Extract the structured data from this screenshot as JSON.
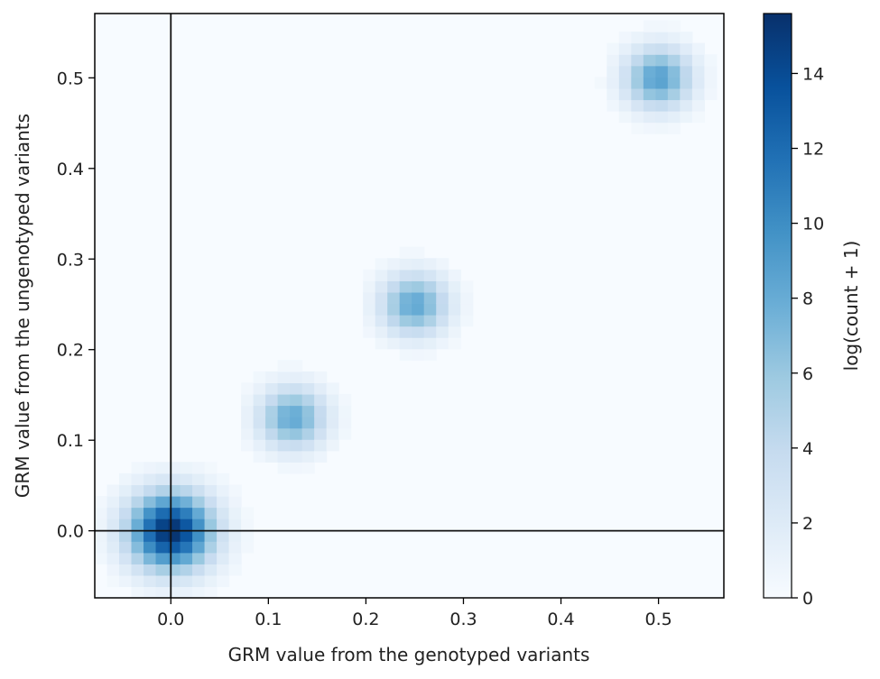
{
  "chart_data": {
    "type": "heatmap",
    "title": "",
    "xlabel": "GRM value from the genotyped variants",
    "ylabel": "GRM value from the ungenotyped variants",
    "xlim": [
      -0.078,
      0.567
    ],
    "ylim": [
      -0.074,
      0.571
    ],
    "bin_size": 0.0125,
    "x_ticks": [
      {
        "value": 0.0,
        "label": "0.0"
      },
      {
        "value": 0.1,
        "label": "0.1"
      },
      {
        "value": 0.2,
        "label": "0.2"
      },
      {
        "value": 0.3,
        "label": "0.3"
      },
      {
        "value": 0.4,
        "label": "0.4"
      },
      {
        "value": 0.5,
        "label": "0.5"
      }
    ],
    "y_ticks": [
      {
        "value": 0.0,
        "label": "0.0"
      },
      {
        "value": 0.1,
        "label": "0.1"
      },
      {
        "value": 0.2,
        "label": "0.2"
      },
      {
        "value": 0.3,
        "label": "0.3"
      },
      {
        "value": 0.4,
        "label": "0.4"
      },
      {
        "value": 0.5,
        "label": "0.5"
      }
    ],
    "reference_lines": {
      "x": 0.0,
      "y": 0.0
    },
    "clusters": [
      {
        "x": 0.0,
        "y": 0.0,
        "peak": 15.6,
        "sigma": 0.03
      },
      {
        "x": 0.125,
        "y": 0.125,
        "peak": 8.2,
        "sigma": 0.024
      },
      {
        "x": 0.25,
        "y": 0.25,
        "peak": 8.3,
        "sigma": 0.024
      },
      {
        "x": 0.5,
        "y": 0.5,
        "peak": 8.8,
        "sigma": 0.024
      }
    ],
    "colorbar": {
      "label": "log(count + 1)",
      "min": 0,
      "max": 15.6,
      "ticks": [
        {
          "value": 0,
          "label": "0"
        },
        {
          "value": 2,
          "label": "2"
        },
        {
          "value": 4,
          "label": "4"
        },
        {
          "value": 6,
          "label": "6"
        },
        {
          "value": 8,
          "label": "8"
        },
        {
          "value": 10,
          "label": "10"
        },
        {
          "value": 12,
          "label": "12"
        },
        {
          "value": 14,
          "label": "14"
        }
      ],
      "colormap": "Blues",
      "color_stops": [
        "#f7fbff",
        "#deebf7",
        "#c6dbef",
        "#9ecae1",
        "#6baed6",
        "#4292c6",
        "#2171b5",
        "#08519c",
        "#08306b"
      ]
    },
    "grid": false
  }
}
